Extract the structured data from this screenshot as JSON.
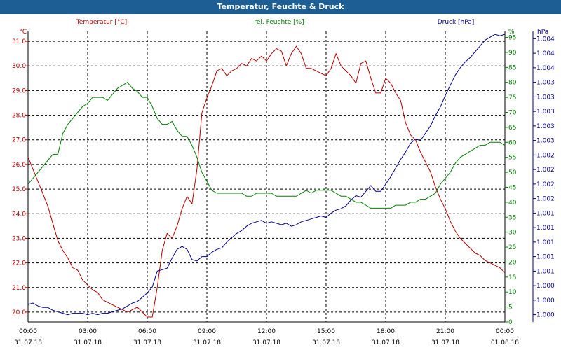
{
  "window": {
    "title": "Temperatur, Feuchte & Druck"
  },
  "colors": {
    "temperature": "#b40000",
    "humidity": "#008000",
    "pressure": "#00008b",
    "title_bar": "#1d5e94",
    "grid": "#000000"
  },
  "chart_data": {
    "type": "line",
    "title": "Temperatur, Feuchte & Druck",
    "legend_placement": "top",
    "grid": true,
    "x": {
      "tick_times": [
        "00:00",
        "03:00",
        "06:00",
        "09:00",
        "12:00",
        "15:00",
        "18:00",
        "21:00",
        "00:00"
      ],
      "tick_dates": [
        "31.07.18",
        "31.07.18",
        "31.07.18",
        "31.07.18",
        "31.07.18",
        "31.07.18",
        "31.07.18",
        "31.07.18",
        "01.08.18"
      ],
      "range_hours": [
        0,
        24
      ]
    },
    "axes": {
      "temperature": {
        "label": "Temperatur [°C]",
        "unit": "°C",
        "range": [
          19.6,
          31.4
        ],
        "ticks": [
          "20.0",
          "21.0",
          "22.0",
          "23.0",
          "24.0",
          "25.0",
          "26.0",
          "27.0",
          "28.0",
          "29.0",
          "30.0",
          "31.0"
        ]
      },
      "humidity": {
        "label": "rel. Feuchte [%]",
        "unit": "%",
        "range": [
          0,
          97
        ],
        "ticks": [
          "0",
          "5",
          "10",
          "15",
          "20",
          "25",
          "30",
          "35",
          "40",
          "45",
          "50",
          "55",
          "60",
          "65",
          "70",
          "75",
          "80",
          "85",
          "90",
          "95"
        ]
      },
      "pressure": {
        "label": "Druck [hPa]",
        "unit": "hPa",
        "range": [
          0,
          20
        ],
        "ticks": [
          "1.000",
          "1.000",
          "1.000",
          "1.001",
          "1.001",
          "1.001",
          "1.001",
          "1.001",
          "1.002",
          "1.002",
          "1.002",
          "1.002",
          "1.003",
          "1.003",
          "1.003",
          "1.003",
          "1.003",
          "1.004",
          "1.004",
          "1.004"
        ]
      }
    },
    "series": [
      {
        "name": "Temperatur",
        "axis": "temperature",
        "color": "#b40000",
        "hours": [
          0,
          0.25,
          0.5,
          0.75,
          1,
          1.25,
          1.5,
          1.75,
          2,
          2.25,
          2.5,
          2.75,
          3,
          3.25,
          3.5,
          3.75,
          4,
          4.25,
          4.5,
          4.75,
          5,
          5.25,
          5.5,
          5.75,
          6,
          6.25,
          6.5,
          6.75,
          7,
          7.25,
          7.5,
          7.75,
          8,
          8.25,
          8.5,
          8.75,
          9,
          9.25,
          9.5,
          9.75,
          10,
          10.25,
          10.5,
          10.75,
          11,
          11.25,
          11.5,
          11.75,
          12,
          12.25,
          12.5,
          12.75,
          13,
          13.25,
          13.5,
          13.75,
          14,
          14.25,
          14.5,
          14.75,
          15,
          15.25,
          15.5,
          15.75,
          16,
          16.25,
          16.5,
          16.75,
          17,
          17.25,
          17.5,
          17.75,
          18,
          18.25,
          18.5,
          18.75,
          19,
          19.25,
          19.5,
          19.75,
          20,
          20.25,
          20.5,
          20.75,
          21,
          21.25,
          21.5,
          21.75,
          22,
          22.25,
          22.5,
          22.75,
          23,
          23.25,
          23.5,
          23.75,
          24
        ],
        "values": [
          26.3,
          25.8,
          25.3,
          24.8,
          24.3,
          23.6,
          22.9,
          22.5,
          22.2,
          21.8,
          21.7,
          21.3,
          21.1,
          20.9,
          20.8,
          20.5,
          20.4,
          20.3,
          20.2,
          20.1,
          20.0,
          20.1,
          20.2,
          20.0,
          19.8,
          19.8,
          21.0,
          22.5,
          23.2,
          23.0,
          23.5,
          24.2,
          24.7,
          24.4,
          25.8,
          28.1,
          28.7,
          29.2,
          29.8,
          29.9,
          29.6,
          29.8,
          29.9,
          30.1,
          30.0,
          30.3,
          30.2,
          30.4,
          30.2,
          30.5,
          30.7,
          30.6,
          30.0,
          30.5,
          30.8,
          30.5,
          29.9,
          29.9,
          29.8,
          29.7,
          29.6,
          29.9,
          30.5,
          30.0,
          29.8,
          29.6,
          29.3,
          30.1,
          30.2,
          29.5,
          28.9,
          28.9,
          29.5,
          29.3,
          28.9,
          28.6,
          27.7,
          27.2,
          27.0,
          26.5,
          26.1,
          25.7,
          25.1,
          24.6,
          24.2,
          23.7,
          23.3,
          23.0,
          22.8,
          22.6,
          22.4,
          22.3,
          22.1,
          22.0,
          21.9,
          21.8,
          21.6
        ],
        "unit": "°C"
      },
      {
        "name": "rel. Feuchte",
        "axis": "humidity",
        "color": "#008000",
        "hours": [
          0,
          0.25,
          0.5,
          0.75,
          1,
          1.25,
          1.5,
          1.75,
          2,
          2.25,
          2.5,
          2.75,
          3,
          3.25,
          3.5,
          3.75,
          4,
          4.25,
          4.5,
          4.75,
          5,
          5.25,
          5.5,
          5.75,
          6,
          6.25,
          6.5,
          6.75,
          7,
          7.25,
          7.5,
          7.75,
          8,
          8.25,
          8.5,
          8.75,
          9,
          9.25,
          9.5,
          9.75,
          10,
          10.25,
          10.5,
          10.75,
          11,
          11.25,
          11.5,
          11.75,
          12,
          12.25,
          12.5,
          12.75,
          13,
          13.25,
          13.5,
          13.75,
          14,
          14.25,
          14.5,
          14.75,
          15,
          15.25,
          15.5,
          15.75,
          16,
          16.25,
          16.5,
          16.75,
          17,
          17.25,
          17.5,
          17.75,
          18,
          18.25,
          18.5,
          18.75,
          19,
          19.25,
          19.5,
          19.75,
          20,
          20.25,
          20.5,
          20.75,
          21,
          21.25,
          21.5,
          21.75,
          22,
          22.25,
          22.5,
          22.75,
          23,
          23.25,
          23.5,
          23.75,
          24
        ],
        "values": [
          46,
          48,
          50,
          52,
          54,
          56,
          56,
          63,
          66,
          68,
          70,
          72,
          73,
          75,
          75,
          75,
          74,
          76,
          78,
          79,
          80,
          78,
          77,
          75,
          75,
          72,
          68,
          66,
          66,
          67,
          64,
          62,
          62,
          59,
          55,
          50,
          47,
          44,
          43,
          43,
          43,
          43,
          43,
          43,
          42,
          42,
          43,
          43,
          43,
          43,
          42,
          42,
          42,
          42,
          42,
          43,
          44,
          43,
          44,
          44,
          44,
          44,
          43,
          42,
          42,
          41,
          40,
          40,
          39,
          38,
          38,
          38,
          38,
          38,
          39,
          39,
          39,
          40,
          40,
          41,
          41,
          42,
          43,
          46,
          48,
          50,
          53,
          55,
          56,
          57,
          58,
          59,
          59,
          60,
          60,
          60,
          59
        ],
        "unit": "%"
      },
      {
        "name": "Druck",
        "axis": "pressure",
        "color": "#00008b",
        "hours": [
          0,
          0.25,
          0.5,
          0.75,
          1,
          1.25,
          1.5,
          1.75,
          2,
          2.25,
          2.5,
          2.75,
          3,
          3.25,
          3.5,
          3.75,
          4,
          4.25,
          4.5,
          4.75,
          5,
          5.25,
          5.5,
          5.75,
          6,
          6.25,
          6.5,
          6.75,
          7,
          7.25,
          7.5,
          7.75,
          8,
          8.25,
          8.5,
          8.75,
          9,
          9.25,
          9.5,
          9.75,
          10,
          10.25,
          10.5,
          10.75,
          11,
          11.25,
          11.5,
          11.75,
          12,
          12.25,
          12.5,
          12.75,
          13,
          13.25,
          13.5,
          13.75,
          14,
          14.25,
          14.5,
          14.75,
          15,
          15.25,
          15.5,
          15.75,
          16,
          16.25,
          16.5,
          16.75,
          17,
          17.25,
          17.5,
          17.75,
          18,
          18.25,
          18.5,
          18.75,
          19,
          19.25,
          19.5,
          19.75,
          20,
          20.25,
          20.5,
          20.75,
          21,
          21.25,
          21.5,
          21.75,
          22,
          22.25,
          22.5,
          22.75,
          23,
          23.25,
          23.5,
          23.75,
          24
        ],
        "values": [
          1.2,
          1.3,
          1.1,
          1.0,
          1.0,
          0.8,
          0.7,
          0.6,
          0.5,
          0.6,
          0.6,
          0.6,
          0.5,
          0.6,
          0.5,
          0.6,
          0.6,
          0.7,
          0.8,
          0.9,
          1.1,
          1.3,
          1.4,
          1.7,
          2.0,
          2.4,
          3.5,
          3.6,
          3.7,
          4.4,
          5.0,
          5.2,
          5.0,
          4.3,
          4.2,
          4.5,
          4.5,
          4.8,
          5.0,
          5.1,
          5.5,
          5.8,
          6.1,
          6.3,
          6.6,
          6.8,
          6.9,
          7.0,
          6.8,
          6.9,
          6.8,
          6.7,
          6.8,
          6.6,
          6.7,
          6.9,
          7.0,
          7.1,
          7.2,
          7.3,
          7.2,
          7.5,
          7.7,
          7.8,
          8.0,
          8.4,
          8.7,
          8.6,
          9.0,
          9.4,
          9.0,
          9.0,
          9.5,
          10.0,
          10.6,
          11.2,
          11.7,
          12.3,
          12.6,
          12.5,
          13.0,
          13.5,
          14.2,
          14.8,
          15.6,
          16.3,
          17.0,
          17.5,
          17.9,
          18.2,
          18.6,
          19.0,
          19.4,
          19.6,
          19.8,
          19.7,
          19.8
        ],
        "unit": "hPa"
      }
    ]
  }
}
